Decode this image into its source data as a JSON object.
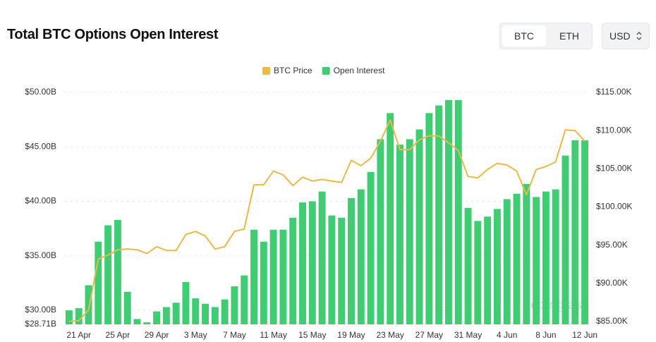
{
  "header": {
    "buttons": [
      "BTC",
      "ETH"
    ],
    "currency": "USD"
  },
  "chart_data": {
    "type": "bar",
    "title": "Total BTC Options Open Interest",
    "watermark": "coinglass",
    "categories": [
      null,
      "21 Apr",
      null,
      null,
      null,
      "25 Apr",
      null,
      null,
      null,
      "29 Apr",
      null,
      null,
      null,
      "3 May",
      null,
      null,
      null,
      "7 May",
      null,
      null,
      null,
      "11 May",
      null,
      null,
      null,
      "15 May",
      null,
      null,
      null,
      "19 May",
      null,
      null,
      null,
      "23 May",
      null,
      null,
      null,
      "27 May",
      null,
      null,
      null,
      "31 May",
      null,
      null,
      null,
      "4 Jun",
      null,
      null,
      null,
      "8 Jun",
      null,
      null,
      null,
      "12 Jun"
    ],
    "series": [
      {
        "name": "BTC Price",
        "color": "#e9b949",
        "axis": "y2",
        "type": "line",
        "values": [
          85050,
          85100,
          86500,
          93200,
          93700,
          94400,
          94500,
          94400,
          93900,
          94800,
          94300,
          94300,
          96400,
          96800,
          96200,
          94500,
          94800,
          96800,
          97100,
          102900,
          102900,
          104700,
          104200,
          102800,
          103900,
          103400,
          103600,
          103400,
          103200,
          106100,
          105400,
          106400,
          108600,
          111400,
          107500,
          107500,
          108800,
          109300,
          109300,
          108400,
          107400,
          104000,
          103800,
          104900,
          105700,
          105500,
          104700,
          101600,
          104900,
          105300,
          105900,
          110100,
          110000,
          108600
        ]
      },
      {
        "name": "Open Interest",
        "color": "#40cc72",
        "type": "bar",
        "values": [
          30.0,
          30.2,
          32.3,
          36.3,
          37.8,
          38.3,
          31.7,
          29.2,
          28.9,
          29.9,
          30.3,
          30.7,
          32.6,
          31.1,
          30.6,
          30.3,
          31.0,
          32.2,
          33.2,
          37.4,
          36.3,
          37.4,
          37.4,
          38.5,
          39.9,
          40.0,
          40.9,
          38.7,
          38.5,
          40.3,
          41.1,
          42.7,
          45.7,
          48.1,
          45.2,
          45.7,
          46.6,
          48.1,
          48.8,
          49.3,
          49.3,
          39.4,
          38.2,
          38.6,
          39.3,
          40.2,
          40.7,
          41.6,
          40.4,
          40.9,
          41.1,
          44.2,
          45.6,
          45.6
        ]
      }
    ],
    "ylim": [
      28.71,
      50
    ],
    "yticks": [
      {
        "value": 28.71,
        "label": "$28.71B"
      },
      {
        "value": 30,
        "label": "$30.00B"
      },
      {
        "value": 35,
        "label": "$35.00B"
      },
      {
        "value": 40,
        "label": "$40.00B"
      },
      {
        "value": 45,
        "label": "$45.00B"
      },
      {
        "value": 50,
        "label": "$50.00B"
      }
    ],
    "y2lim": [
      84630,
      115000
    ],
    "y2ticks": [
      {
        "value": 85000,
        "label": "$85.00K"
      },
      {
        "value": 90000,
        "label": "$90.00K"
      },
      {
        "value": 95000,
        "label": "$95.00K"
      },
      {
        "value": 100000,
        "label": "$100.00K"
      },
      {
        "value": 105000,
        "label": "$105.00K"
      },
      {
        "value": 110000,
        "label": "$110.00K"
      },
      {
        "value": 115000,
        "label": "$115.00K"
      }
    ],
    "grid": true
  }
}
